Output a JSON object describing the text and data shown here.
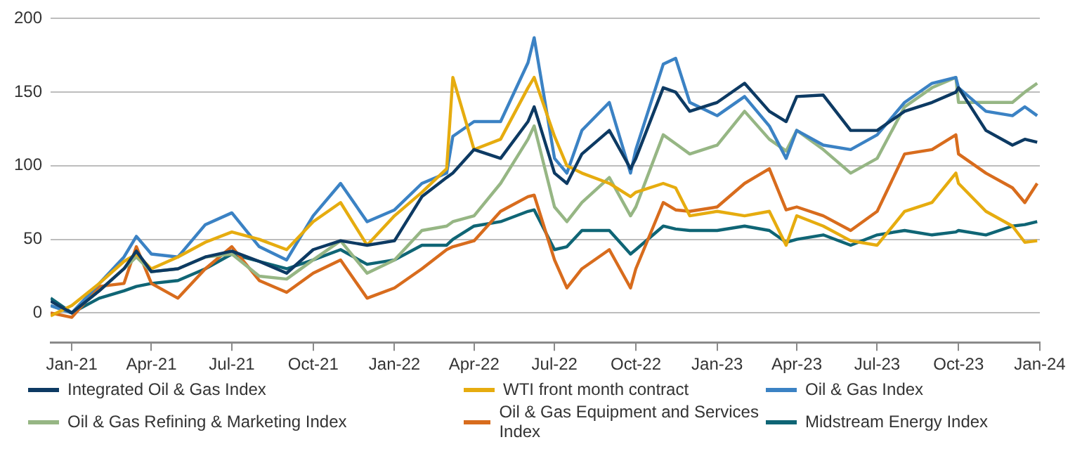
{
  "chart_data": {
    "type": "line",
    "x": [
      "2020-12-08",
      "2021-01-01",
      "2021-02-01",
      "2021-03-01",
      "2021-03-15",
      "2021-04-01",
      "2021-05-01",
      "2021-06-01",
      "2021-07-01",
      "2021-08-01",
      "2021-09-01",
      "2021-10-01",
      "2021-11-01",
      "2021-12-01",
      "2022-01-01",
      "2022-02-01",
      "2022-03-01",
      "2022-03-08",
      "2022-04-01",
      "2022-05-01",
      "2022-06-01",
      "2022-06-08",
      "2022-07-01",
      "2022-07-15",
      "2022-08-01",
      "2022-09-01",
      "2022-09-25",
      "2022-10-01",
      "2022-11-01",
      "2022-11-15",
      "2022-12-01",
      "2023-01-01",
      "2023-02-01",
      "2023-03-01",
      "2023-03-20",
      "2023-04-01",
      "2023-05-01",
      "2023-06-01",
      "2023-07-01",
      "2023-08-01",
      "2023-09-01",
      "2023-09-28",
      "2023-10-01",
      "2023-11-01",
      "2023-12-01",
      "2023-12-15",
      "2023-12-29"
    ],
    "series": [
      {
        "name": "Integrated Oil & Gas Index",
        "color": "#0d3a63",
        "values": [
          8,
          0,
          15,
          30,
          42,
          28,
          30,
          38,
          42,
          35,
          27,
          43,
          49,
          46,
          49,
          79,
          92,
          95,
          111,
          105,
          130,
          140,
          95,
          88,
          108,
          124,
          98,
          105,
          153,
          150,
          137,
          143,
          156,
          137,
          130,
          147,
          148,
          124,
          124,
          137,
          143,
          150,
          153,
          124,
          114,
          118,
          116
        ]
      },
      {
        "name": "WTI front month contract",
        "color": "#e6ac0f",
        "values": [
          -2,
          5,
          20,
          35,
          40,
          30,
          38,
          48,
          55,
          50,
          43,
          62,
          75,
          46,
          66,
          82,
          98,
          160,
          111,
          118,
          153,
          160,
          120,
          100,
          95,
          88,
          79,
          82,
          88,
          85,
          66,
          69,
          66,
          69,
          46,
          66,
          59,
          49,
          46,
          69,
          75,
          95,
          88,
          69,
          59,
          48,
          49
        ]
      },
      {
        "name": "Oil & Gas Index",
        "color": "#3b82c4",
        "values": [
          5,
          0,
          20,
          38,
          52,
          40,
          38,
          60,
          68,
          45,
          36,
          66,
          88,
          62,
          70,
          88,
          95,
          120,
          130,
          130,
          170,
          187,
          105,
          95,
          124,
          143,
          95,
          111,
          169,
          173,
          143,
          134,
          147,
          127,
          105,
          124,
          114,
          111,
          121,
          143,
          156,
          160,
          153,
          137,
          134,
          140,
          134
        ]
      },
      {
        "name": "Oil & Gas Refining & Marketing Index",
        "color": "#96b684",
        "values": [
          5,
          0,
          15,
          30,
          38,
          28,
          30,
          38,
          40,
          25,
          23,
          36,
          49,
          27,
          36,
          56,
          59,
          62,
          66,
          88,
          118,
          127,
          72,
          62,
          75,
          92,
          66,
          72,
          121,
          115,
          108,
          114,
          137,
          118,
          110,
          124,
          111,
          95,
          105,
          140,
          153,
          160,
          143,
          143,
          143,
          150,
          156
        ]
      },
      {
        "name": "Oil & Gas Equipment and Services Index",
        "color": "#d86c1d",
        "values": [
          0,
          -3,
          18,
          20,
          45,
          20,
          10,
          30,
          45,
          22,
          14,
          27,
          36,
          10,
          17,
          30,
          43,
          45,
          49,
          69,
          79,
          80,
          36,
          17,
          30,
          43,
          17,
          30,
          75,
          70,
          69,
          72,
          88,
          98,
          70,
          72,
          66,
          56,
          69,
          108,
          111,
          121,
          108,
          95,
          85,
          75,
          88
        ]
      },
      {
        "name": "Midstream Energy Index",
        "color": "#0f6575",
        "values": [
          10,
          0,
          10,
          15,
          18,
          20,
          22,
          30,
          40,
          35,
          30,
          36,
          43,
          33,
          36,
          46,
          46,
          50,
          59,
          62,
          69,
          70,
          43,
          45,
          56,
          56,
          40,
          43,
          59,
          57,
          56,
          56,
          59,
          56,
          48,
          50,
          53,
          46,
          53,
          56,
          53,
          55,
          56,
          53,
          59,
          60,
          62
        ]
      }
    ],
    "xlim": [
      "2020-12-08",
      "2024-01-01"
    ],
    "xticks": [
      {
        "value": "2021-01-01",
        "label": "Jan-21"
      },
      {
        "value": "2021-04-01",
        "label": "Apr-21"
      },
      {
        "value": "2021-07-01",
        "label": "Jul-21"
      },
      {
        "value": "2021-10-01",
        "label": "Oct-21"
      },
      {
        "value": "2022-01-01",
        "label": "Jan-22"
      },
      {
        "value": "2022-04-01",
        "label": "Apr-22"
      },
      {
        "value": "2022-07-01",
        "label": "Jul-22"
      },
      {
        "value": "2022-10-01",
        "label": "Oct-22"
      },
      {
        "value": "2023-01-01",
        "label": "Jan-23"
      },
      {
        "value": "2023-04-01",
        "label": "Apr-23"
      },
      {
        "value": "2023-07-01",
        "label": "Jul-23"
      },
      {
        "value": "2023-10-01",
        "label": "Oct-23"
      },
      {
        "value": "2024-01-01",
        "label": "Jan-24"
      }
    ],
    "ylim": [
      -20,
      200
    ],
    "yticks": [
      0,
      50,
      100,
      150,
      200
    ],
    "grid": "y",
    "legend": "bottom",
    "marker": "none",
    "line_style": "solid"
  }
}
